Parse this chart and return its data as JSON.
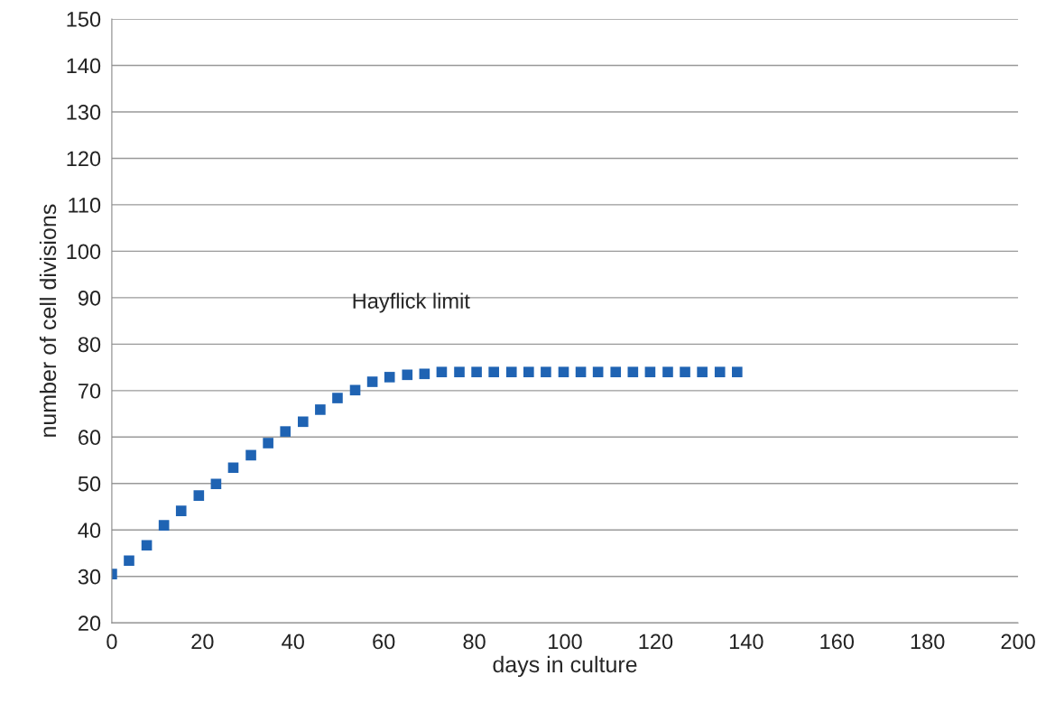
{
  "chart_data": {
    "type": "scatter",
    "xlabel": "days in culture",
    "ylabel": "number of cell divisions",
    "annotations": [
      "Hayflick limit"
    ],
    "x": [
      0,
      3.8,
      7.7,
      11.5,
      15.3,
      19.2,
      23,
      26.8,
      30.7,
      34.5,
      38.3,
      42.2,
      46,
      49.8,
      53.7,
      57.5,
      61.3,
      65.2,
      69,
      72.8,
      76.7,
      80.5,
      84.3,
      88.2,
      92,
      95.8,
      99.7,
      103.5,
      107.3,
      111.2,
      115,
      118.8,
      122.7,
      126.5,
      130.3,
      134.2,
      138
    ],
    "series": [
      {
        "color": "#1f63b3",
        "values": [
          30.5,
          33.4,
          36.7,
          41,
          44.1,
          47.4,
          49.9,
          53.4,
          56.1,
          58.7,
          61.2,
          63.3,
          65.9,
          68.4,
          70.1,
          71.9,
          72.9,
          73.4,
          73.6,
          74,
          74,
          74,
          74,
          74,
          74,
          74,
          74,
          74,
          74,
          74,
          74,
          74,
          74,
          74,
          74,
          74,
          74
        ]
      }
    ],
    "xlim": [
      0,
      200
    ],
    "xticks": [
      0,
      20,
      40,
      60,
      80,
      100,
      120,
      140,
      160,
      180,
      200
    ],
    "ylim": [
      20,
      150
    ],
    "yticks": [
      20,
      30,
      40,
      50,
      60,
      70,
      80,
      90,
      100,
      110,
      120,
      130,
      140,
      150
    ],
    "grid": "y",
    "marker": "square",
    "legend": false
  }
}
